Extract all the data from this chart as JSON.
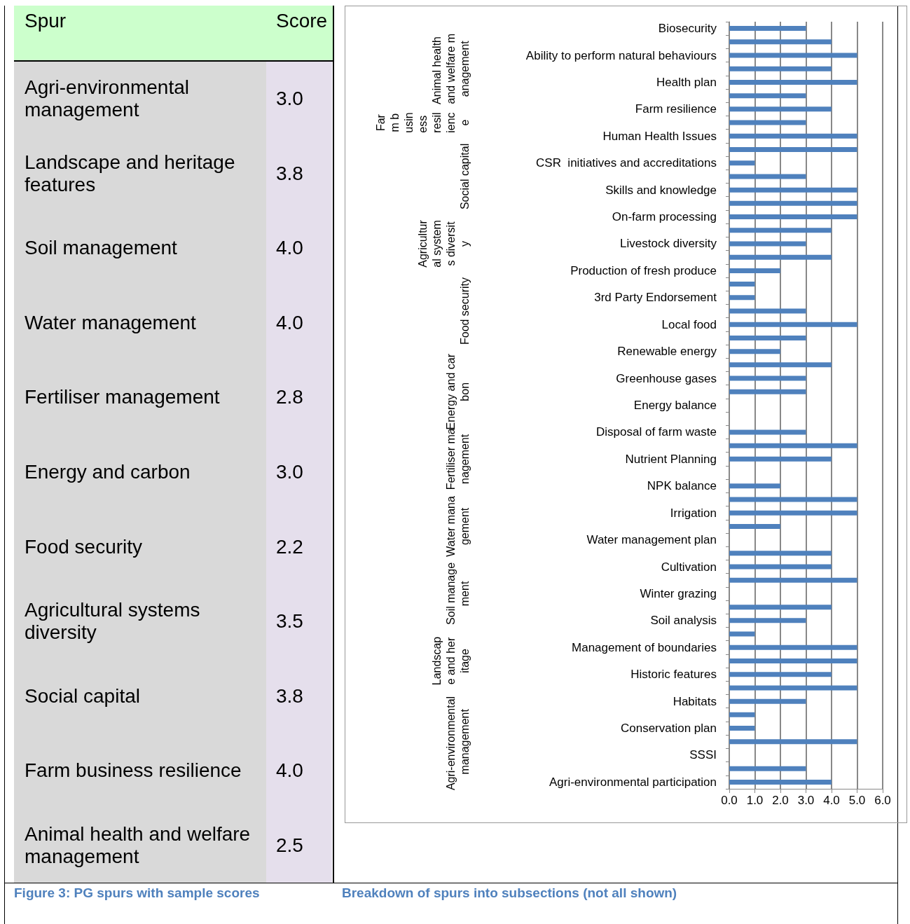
{
  "chart_data": [
    {
      "type": "other",
      "title": "Figure 3: PG spurs with sample scores",
      "xlabel": "Spur",
      "ylabel": "Score",
      "categories": [
        "Agri-environmental management",
        "Landscape and heritage features",
        "Soil management",
        "Water management",
        "Fertiliser management",
        "Energy and carbon",
        "Food security",
        "Agricultural systems diversity",
        "Social capital",
        "Farm business resilience",
        "Animal health and welfare management"
      ],
      "values": [
        3.0,
        3.8,
        4.0,
        4.0,
        2.8,
        3.0,
        2.2,
        3.5,
        3.8,
        4.0,
        2.5
      ],
      "value_labels": [
        "3.0",
        "3.8",
        "4.0",
        "4.0",
        "2.8",
        "3.0",
        "2.2",
        "3.5",
        "3.8",
        "4.0",
        "2.5"
      ]
    },
    {
      "type": "bar",
      "orientation": "horizontal",
      "title": "Breakdown of spurs into subsections (not all shown)",
      "color": "#4f81bd",
      "grid": "x",
      "categories": [
        "Biosecurity",
        null,
        "Ability to perform natural behaviours",
        null,
        "Health plan",
        null,
        "Farm resilience",
        null,
        "Human Health Issues",
        null,
        "CSR  initiatives and accreditations",
        null,
        "Skills and knowledge",
        null,
        "On-farm processing",
        null,
        "Livestock diversity",
        null,
        "Production of fresh produce",
        null,
        "3rd Party Endorsement",
        null,
        "Local food",
        null,
        "Renewable energy",
        null,
        "Greenhouse gases",
        null,
        "Energy balance",
        null,
        "Disposal of farm waste",
        null,
        "Nutrient Planning",
        null,
        "NPK balance",
        null,
        "Irrigation",
        null,
        "Water management plan",
        null,
        "Cultivation",
        null,
        "Winter grazing",
        null,
        "Soil analysis",
        null,
        "Management of boundaries",
        null,
        "Historic features",
        null,
        "Habitats",
        null,
        "Conservation plan",
        null,
        "SSSI",
        null,
        "Agri-environmental participation"
      ],
      "values": [
        3,
        4,
        5,
        4,
        5,
        3,
        4,
        3,
        5,
        5,
        1,
        3,
        5,
        5,
        5,
        4,
        3,
        4,
        2,
        1,
        1,
        3,
        5,
        3,
        2,
        4,
        3,
        3,
        null,
        null,
        3,
        5,
        4,
        null,
        2,
        5,
        5,
        2,
        null,
        4,
        4,
        5,
        null,
        4,
        3,
        1,
        5,
        5,
        4,
        5,
        3,
        1,
        1,
        5,
        null,
        3,
        4
      ],
      "xlim": [
        0,
        6
      ],
      "xticks": [
        {
          "value": 0,
          "label": "0.0"
        },
        {
          "value": 1,
          "label": "1.0"
        },
        {
          "value": 2,
          "label": "2.0"
        },
        {
          "value": 3,
          "label": "3.0"
        },
        {
          "value": 4,
          "label": "4.0"
        },
        {
          "value": 5,
          "label": "5.0"
        },
        {
          "value": 6,
          "label": "6.0"
        }
      ],
      "annotations": [
        "Animal health and welfare management",
        "Farm business resilience",
        "Social capital",
        "Agricultural systems diversity",
        "Food security",
        "Energy and carbon",
        "Fertiliser management",
        "Water management",
        "Soil management",
        "Landscape and heritage",
        "Agri-environmental management"
      ]
    }
  ]
}
